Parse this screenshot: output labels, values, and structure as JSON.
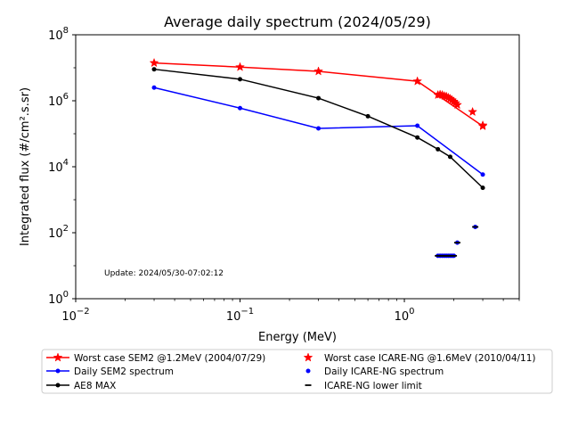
{
  "chart_data": {
    "type": "line",
    "title": "Average daily spectrum (2024/05/29)",
    "xlabel": "Energy (MeV)",
    "ylabel": "Integrated flux (#/cm².s.sr)",
    "xscale": "log",
    "yscale": "log",
    "xlim": [
      0.01,
      5.0
    ],
    "ylim": [
      1,
      100000000
    ],
    "x_tick_labels": [
      {
        "value": 0.01,
        "base": "10",
        "exp": "−2"
      },
      {
        "value": 0.1,
        "base": "10",
        "exp": "−1"
      },
      {
        "value": 1,
        "base": "10",
        "exp": "0"
      }
    ],
    "y_tick_labels": [
      {
        "value": 1,
        "base": "10",
        "exp": "0"
      },
      {
        "value": 100,
        "base": "10",
        "exp": "2"
      },
      {
        "value": 10000,
        "base": "10",
        "exp": "4"
      },
      {
        "value": 1000000,
        "base": "10",
        "exp": "6"
      },
      {
        "value": 100000000,
        "base": "10",
        "exp": "8"
      }
    ],
    "annotation": "Update: 2024/05/30-07:02:12",
    "grid": false,
    "legend_position": "below",
    "series": [
      {
        "name": "Worst case SEM2 @1.2MeV (2004/07/29)",
        "color": "#ff0000",
        "style": "line",
        "marker": "star",
        "x": [
          0.03,
          0.1,
          0.3,
          1.2,
          3.0
        ],
        "y": [
          14000000,
          10500000,
          7800000,
          3900000,
          170000
        ]
      },
      {
        "name": "Daily SEM2 spectrum",
        "color": "#0000ff",
        "style": "line",
        "marker": "dot",
        "x": [
          0.03,
          0.1,
          0.3,
          1.2,
          3.0
        ],
        "y": [
          2500000,
          600000,
          145000,
          175000,
          5800
        ]
      },
      {
        "name": "AE8 MAX",
        "color": "#000000",
        "style": "line",
        "marker": "dot",
        "x": [
          0.03,
          0.1,
          0.3,
          0.6,
          1.2,
          1.6,
          1.9,
          3.0
        ],
        "y": [
          9000000,
          4500000,
          1200000,
          340000,
          77000,
          34000,
          20000,
          2300
        ]
      },
      {
        "name": "Worst case ICARE-NG @1.6MeV (2010/04/11)",
        "color": "#ff0000",
        "style": "scatter",
        "marker": "star",
        "x": [
          1.6,
          1.65,
          1.7,
          1.75,
          1.8,
          1.85,
          1.9,
          1.95,
          2.0,
          2.05,
          2.1,
          2.6,
          3.0
        ],
        "y": [
          1500000,
          1550000,
          1500000,
          1400000,
          1350000,
          1250000,
          1150000,
          1050000,
          950000,
          850000,
          750000,
          460000,
          180000
        ]
      },
      {
        "name": "Daily ICARE-NG spectrum",
        "color": "#0000ff",
        "style": "scatter",
        "marker": "dot",
        "x": [
          1.6,
          1.65,
          1.7,
          1.75,
          1.8,
          1.85,
          1.9,
          1.95,
          2.0,
          2.1,
          2.7
        ],
        "y": [
          20,
          20,
          20,
          20,
          20,
          20,
          20,
          20,
          20,
          50,
          150
        ]
      },
      {
        "name": "ICARE-NG lower limit",
        "color": "#000000",
        "style": "scatter",
        "marker": "dash",
        "x": [
          1.6,
          1.65,
          1.7,
          1.75,
          1.8,
          1.85,
          1.9,
          1.95,
          2.0,
          2.1,
          2.7
        ],
        "y": [
          20,
          20,
          20,
          20,
          20,
          20,
          20,
          20,
          20,
          50,
          150
        ]
      }
    ]
  }
}
